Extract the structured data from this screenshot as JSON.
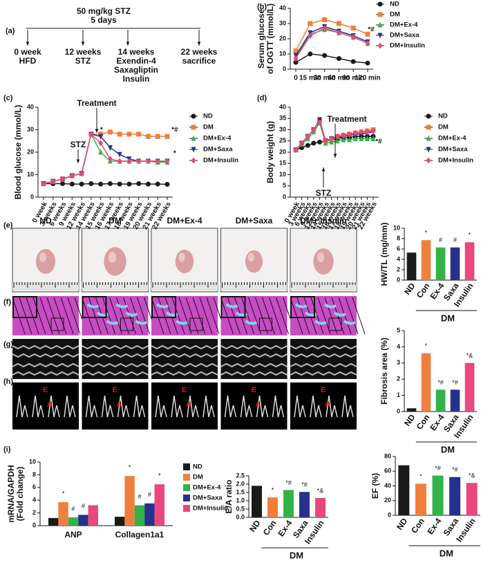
{
  "panel_labels": [
    "(a)",
    "(b)",
    "(c)",
    "(d)",
    "(e)",
    "(f)",
    "(g)",
    "(h)",
    "(i)"
  ],
  "timeline": {
    "top": "50 mg/kg STZ",
    "sub": "5 days",
    "events": [
      [
        "0 week",
        "HFD"
      ],
      [
        "12 weeks",
        "STZ"
      ],
      [
        "14 weeks",
        "Exendin-4",
        "Saxagliptin",
        "Insulin"
      ],
      [
        "22 weeks",
        "sacrifice"
      ]
    ]
  },
  "images": {
    "columns": [
      "ND",
      "DM",
      "DM+Ex-4",
      "DM+Saxa",
      "DM+ Insulin"
    ],
    "doppler_labels": [
      "E",
      "A"
    ]
  },
  "chart_data": [
    {
      "type": "line",
      "y_label": [
        "Serum glucose",
        "of OGTT (mmol/L)"
      ],
      "categories": [
        "0",
        "15 min",
        "30 min",
        "60 min",
        "90 min",
        "120 min"
      ],
      "ylim": [
        0,
        40
      ],
      "yticks": [
        0,
        10,
        20,
        30,
        40
      ],
      "series": [
        {
          "name": "ND",
          "color": "#1a1a1a",
          "marker": "circle",
          "values": [
            4.5,
            10,
            9,
            7,
            5,
            4
          ]
        },
        {
          "name": "DM",
          "color": "#f07f3c",
          "marker": "square",
          "values": [
            12,
            30,
            32.5,
            30,
            27,
            23
          ]
        },
        {
          "name": "DM+Ex-4",
          "color": "#33b24a",
          "marker": "triangle",
          "values": [
            8,
            23,
            26,
            24,
            21,
            17
          ]
        },
        {
          "name": "DM+Saxa",
          "color": "#27318b",
          "marker": "triangle-down",
          "values": [
            9,
            24,
            28,
            25,
            22,
            18
          ]
        },
        {
          "name": "DM+Insulin",
          "color": "#e9487c",
          "marker": "diamond",
          "values": [
            7,
            22,
            27,
            24,
            21,
            17
          ]
        }
      ],
      "annotations": [
        "*#"
      ]
    },
    {
      "type": "line",
      "y_label": [
        "Blood glucose (mmol/L)"
      ],
      "categories": [
        "0 week",
        "3 weeks",
        "6 weeks",
        "9 weeks",
        "12 weeks",
        "14 weeks",
        "15 weeks",
        "16 weeks",
        "17 weeks",
        "18 weeks",
        "19 weeks",
        "20 weeks",
        "21 weeks",
        "22 weeks"
      ],
      "ylim": [
        0,
        40
      ],
      "yticks": [
        0,
        10,
        20,
        30,
        40
      ],
      "series": [
        {
          "name": "ND",
          "color": "#1a1a1a",
          "marker": "circle",
          "values": [
            6,
            6,
            6,
            5.8,
            5.8,
            6,
            5.8,
            6,
            5.8,
            5.8,
            6,
            5.8,
            5.8,
            5.7
          ]
        },
        {
          "name": "DM",
          "color": "#f07f3c",
          "marker": "square",
          "values": [
            6,
            7,
            8,
            9.5,
            10.5,
            28,
            28,
            29,
            28,
            28,
            28,
            27,
            27,
            27
          ]
        },
        {
          "name": "DM+Ex-4",
          "color": "#33b24a",
          "marker": "triangle",
          "values": [
            6,
            7,
            8,
            9.5,
            10.5,
            28,
            20,
            16,
            16,
            16,
            16,
            16,
            15.5,
            15.5
          ]
        },
        {
          "name": "DM+Saxa",
          "color": "#27318b",
          "marker": "triangle-down",
          "values": [
            6,
            7,
            8,
            9.5,
            10.5,
            28,
            27,
            22,
            19,
            17,
            16,
            16,
            16,
            16
          ]
        },
        {
          "name": "DM+Insulin",
          "color": "#e9487c",
          "marker": "diamond",
          "values": [
            6,
            7,
            8,
            9.5,
            10.5,
            28,
            24,
            17,
            16,
            16,
            16,
            16,
            16,
            16
          ]
        }
      ],
      "annotations": [
        "Treatment",
        "STZ",
        "*",
        "*#",
        "*"
      ]
    },
    {
      "type": "line",
      "y_label": [
        "Body weight (g)"
      ],
      "categories": [
        "0 week",
        "3 weeks",
        "6 weeks",
        "9 weeks",
        "12 weeks",
        "14 weeks",
        "15 weeks",
        "16 weeks",
        "17 weeks",
        "18 weeks",
        "19 weeks",
        "20 weeks",
        "21 weeks",
        "22 weeks"
      ],
      "ylim": [
        0,
        40
      ],
      "yticks": [
        0,
        5,
        10,
        15,
        20,
        25,
        30,
        35,
        40
      ],
      "series": [
        {
          "name": "ND",
          "color": "#1a1a1a",
          "marker": "circle",
          "values": [
            21,
            22,
            23,
            24,
            24.5,
            25,
            25.5,
            26,
            26.5,
            26.5,
            27,
            27,
            27,
            27
          ]
        },
        {
          "name": "DM",
          "color": "#f07f3c",
          "marker": "square",
          "values": [
            21,
            24,
            27,
            30,
            34,
            25,
            26,
            27,
            27.5,
            28,
            28.5,
            29,
            29.5,
            30
          ]
        },
        {
          "name": "DM+Ex-4",
          "color": "#33b24a",
          "marker": "triangle",
          "values": [
            21,
            23.5,
            26,
            29,
            33,
            24,
            24.5,
            25,
            25.5,
            25.5,
            26,
            26,
            26,
            26
          ]
        },
        {
          "name": "DM+Saxa",
          "color": "#27318b",
          "marker": "triangle-down",
          "values": [
            21,
            24,
            27,
            30,
            34.5,
            25,
            26,
            26.5,
            27,
            27.5,
            28,
            28,
            28.5,
            29
          ]
        },
        {
          "name": "DM+Insulin",
          "color": "#e9487c",
          "marker": "diamond",
          "values": [
            21,
            24,
            27,
            30,
            34,
            25,
            26,
            27,
            27.5,
            28,
            28.5,
            29,
            29,
            29.5
          ]
        }
      ],
      "annotations": [
        "Treatment",
        "STZ",
        "*",
        "*#"
      ]
    },
    {
      "type": "bar",
      "y_label": [
        "HW/TL (mg/mm)"
      ],
      "categories": [
        "ND",
        "Con",
        "Ex-4",
        "Saxa",
        "Insulin"
      ],
      "values": [
        5.3,
        7.7,
        6.3,
        6.3,
        7.3
      ],
      "colors": [
        "#1a1a1a",
        "#f07f3c",
        "#33b24a",
        "#27318b",
        "#e9487c"
      ],
      "annotations": [
        null,
        "*",
        "#",
        "#",
        "*"
      ],
      "group_label": "DM",
      "ylim": [
        0,
        10
      ],
      "yticks": [
        0,
        2,
        4,
        6,
        8,
        10
      ]
    },
    {
      "type": "bar",
      "y_label": [
        "Fibrosis area (%)"
      ],
      "categories": [
        "ND",
        "Con",
        "Ex-4",
        "Saxa",
        "Insulin"
      ],
      "values": [
        0.2,
        3.6,
        1.35,
        1.35,
        3.0
      ],
      "colors": [
        "#1a1a1a",
        "#f07f3c",
        "#33b24a",
        "#27318b",
        "#e9487c"
      ],
      "annotations": [
        null,
        "*",
        "*#",
        "*#",
        "*&"
      ],
      "group_label": "DM",
      "ylim": [
        0,
        5
      ],
      "yticks": [
        0,
        1,
        2,
        3,
        4,
        5
      ]
    },
    {
      "type": "bar",
      "y_label": [
        "mRNA/GAPDH",
        "(Fold change)"
      ],
      "categories": [
        "ANP",
        "Collagen1a1"
      ],
      "ylim": [
        0,
        10
      ],
      "yticks": [
        0,
        2,
        4,
        6,
        8,
        10
      ],
      "series": [
        {
          "name": "ND",
          "color": "#1a1a1a",
          "values": [
            1.2,
            1.4
          ],
          "annotations": [
            null,
            null
          ]
        },
        {
          "name": "DM",
          "color": "#f07f3c",
          "values": [
            3.7,
            7.8
          ],
          "annotations": [
            "*",
            "*"
          ]
        },
        {
          "name": "DM+Ex-4",
          "color": "#33b24a",
          "values": [
            1.3,
            3.2
          ],
          "annotations": [
            "#",
            "#"
          ]
        },
        {
          "name": "DM+Saxa",
          "color": "#27318b",
          "values": [
            1.7,
            3.5
          ],
          "annotations": [
            "#",
            "#"
          ]
        },
        {
          "name": "DM+Insulin",
          "color": "#e9487c",
          "values": [
            3.2,
            6.5
          ],
          "annotations": [
            null,
            "*"
          ]
        }
      ]
    },
    {
      "type": "bar",
      "y_label": [
        "E/A ratio"
      ],
      "categories": [
        "ND",
        "Con",
        "Ex-4",
        "Saxa",
        "Insulin"
      ],
      "values": [
        1.9,
        1.2,
        1.65,
        1.53,
        1.17
      ],
      "colors": [
        "#1a1a1a",
        "#f07f3c",
        "#33b24a",
        "#27318b",
        "#e9487c"
      ],
      "annotations": [
        null,
        "*",
        "*#",
        "*#",
        "*&"
      ],
      "group_label": "DM",
      "ylim": [
        0,
        2.5
      ],
      "yticks": [
        {
          "value": 0,
          "label": "0.0"
        },
        0.5,
        {
          "value": 1,
          "label": "1.0"
        },
        1.5,
        {
          "value": 2,
          "label": "2.0"
        },
        2.5
      ]
    },
    {
      "type": "bar",
      "y_label": [
        "EF (%)"
      ],
      "categories": [
        "ND",
        "Con",
        "Ex-4",
        "Saxa",
        "Insulin"
      ],
      "values": [
        68,
        43,
        54,
        52,
        44
      ],
      "colors": [
        "#1a1a1a",
        "#f07f3c",
        "#33b24a",
        "#27318b",
        "#e9487c"
      ],
      "annotations": [
        null,
        "*",
        "*#",
        "*#",
        "*&"
      ],
      "group_label": "DM",
      "ylim": [
        0,
        80
      ],
      "yticks": [
        0,
        20,
        40,
        60,
        80
      ]
    }
  ]
}
